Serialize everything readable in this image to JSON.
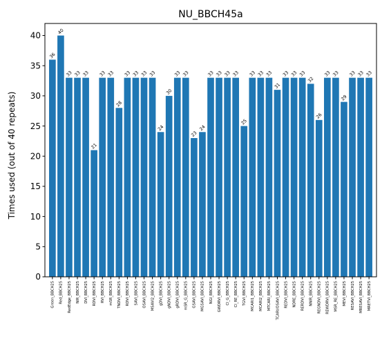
{
  "chart_data": {
    "type": "bar",
    "title": "NU_BBCH45a",
    "xlabel": "",
    "ylabel": "Times used (out of 40 repeats)",
    "ylim": [
      0,
      42
    ],
    "yticks": [
      0,
      5,
      10,
      15,
      20,
      25,
      30,
      35,
      40
    ],
    "bar_color": "#1f77b4",
    "grid": false,
    "categories": [
      "Green_BBCH25",
      "Red_BBCH25",
      "RedEdge_BBCH25",
      "NIR_BBCH25",
      "DVI_BBCH25",
      "RDVI_BBCH25",
      "RVI_BBCH25",
      "mSR_BBCH25",
      "TNDVI_BBCH25",
      "RDVI_BBCH25",
      "SAVI_BBCH25",
      "OSAVI_BBCH25",
      "MSAVI2_BBCH25",
      "gDVI_BBCH25",
      "gNDVI_BBCH25",
      "gRDVI_BBCH25",
      "mSR_G_BBCH25",
      "GSAVI_BBCH25",
      "MGSAVI_BBCH25",
      "NGI_BBCH25",
      "GWDRVI_BBCH25",
      "CI_G_BBCH25",
      "CI_RE_BBCH25",
      "TGVI_BBCH25",
      "MCARI1_BBCH25",
      "MCARI2_BBCH25",
      "MTCARI_BBCH25",
      "TCARI/OSAVI_BBCH25",
      "REDVI_BBCH25",
      "NDRE_BBCH25",
      "RERDVI_BBCH25",
      "NNIR_BBCH25",
      "REGNDVI_BBCH25",
      "REWDRVI_BBCH25",
      "MSR_RE_BBCH25",
      "MEVI_BBCH25",
      "RESAVI_BBCH25",
      "MRESAVI_BBCH25",
      "MRETVI_BBCH25"
    ],
    "values": [
      36,
      40,
      33,
      33,
      33,
      21,
      33,
      33,
      28,
      33,
      33,
      33,
      33,
      24,
      30,
      33,
      33,
      23,
      24,
      33,
      33,
      33,
      33,
      25,
      33,
      33,
      33,
      31,
      33,
      33,
      33,
      32,
      26,
      33,
      33,
      29,
      33,
      33,
      33
    ]
  }
}
